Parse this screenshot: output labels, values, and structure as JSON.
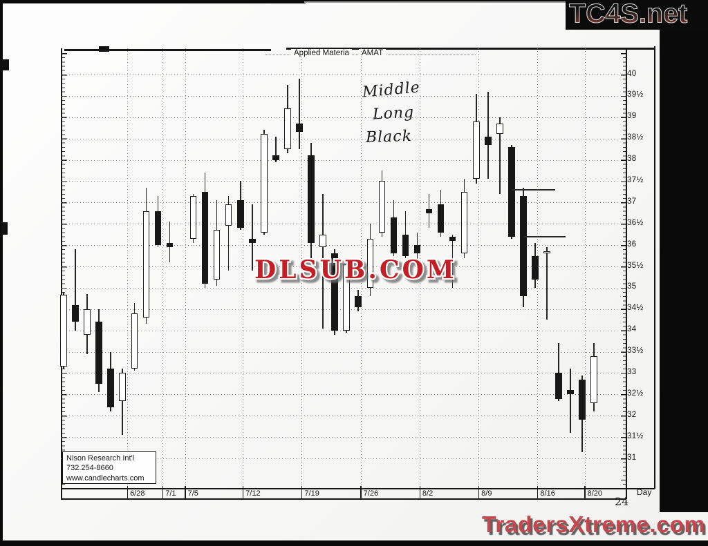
{
  "page": {
    "number": "24"
  },
  "watermarks": {
    "top_right": "TC4S.net",
    "center": "DLSUB.COM",
    "bottom_right": "TradersXtreme.com"
  },
  "annotations": {
    "handwritten_lines": [
      "Middle",
      "Long",
      "Black"
    ]
  },
  "infobox": {
    "line1": "Nison Research Int'l",
    "line2": "732.254-8660",
    "line3": "www.candlecharts.com"
  },
  "chart_data": {
    "type": "candlestick",
    "title": "Applied Materials - AMAT",
    "title_left": "Applied Materia",
    "title_right": "AMAT",
    "axis_unit_label": "Day",
    "grid": "dotted",
    "y_axis": {
      "max": 40,
      "min": 31,
      "step": 0.5,
      "tick_labels": [
        "40",
        "39½",
        "39",
        "38½",
        "38",
        "37½",
        "37",
        "36½",
        "36",
        "35½",
        "35",
        "34½",
        "34",
        "33½",
        "33",
        "32½",
        "32",
        "31½",
        "31"
      ]
    },
    "x_ticks": [
      {
        "label": "6/28",
        "slot": 5.4
      },
      {
        "label": "7/1",
        "slot": 8.4
      },
      {
        "label": "7/5",
        "slot": 10.3
      },
      {
        "label": "7/12",
        "slot": 15.2
      },
      {
        "label": "7/19",
        "slot": 20.2
      },
      {
        "label": "7/26",
        "slot": 25.2
      },
      {
        "label": "8/2",
        "slot": 30.2
      },
      {
        "label": "8/9",
        "slot": 35.2
      },
      {
        "label": "8/16",
        "slot": 40.2
      },
      {
        "label": "8/20",
        "slot": 44.2
      }
    ],
    "candle_format": [
      "slot",
      "open",
      "high",
      "low",
      "close",
      "color b=filled-black w=hollow-white"
    ],
    "candles": [
      [
        0,
        33.15,
        34.9,
        33.1,
        34.83,
        "w"
      ],
      [
        1,
        34.6,
        35.9,
        34.0,
        34.2,
        "b"
      ],
      [
        2,
        33.9,
        34.85,
        33.45,
        34.5,
        "w"
      ],
      [
        3,
        34.2,
        34.5,
        32.55,
        32.75,
        "b"
      ],
      [
        4,
        33.1,
        33.5,
        32.1,
        32.2,
        "b"
      ],
      [
        5,
        32.35,
        33.1,
        31.55,
        33.0,
        "w"
      ],
      [
        6,
        33.1,
        34.65,
        33.05,
        34.4,
        "w"
      ],
      [
        7,
        34.3,
        37.35,
        34.15,
        36.8,
        "w"
      ],
      [
        8,
        36.8,
        37.15,
        35.95,
        36.0,
        "b"
      ],
      [
        9,
        36.05,
        36.55,
        35.6,
        35.95,
        "b"
      ],
      [
        11,
        36.15,
        37.2,
        36.05,
        37.15,
        "w"
      ],
      [
        12,
        37.25,
        37.7,
        35.0,
        35.1,
        "b"
      ],
      [
        13,
        35.2,
        37.05,
        35.05,
        36.35,
        "w"
      ],
      [
        14,
        36.45,
        37.15,
        35.4,
        36.95,
        "w"
      ],
      [
        15,
        37.05,
        37.5,
        36.35,
        36.4,
        "b"
      ],
      [
        16,
        36.15,
        36.95,
        35.4,
        36.05,
        "b"
      ],
      [
        17,
        36.3,
        38.7,
        36.25,
        38.6,
        "w"
      ],
      [
        18,
        38.1,
        38.55,
        37.95,
        38.0,
        "b"
      ],
      [
        19,
        38.25,
        39.75,
        38.15,
        39.2,
        "w"
      ],
      [
        20,
        38.85,
        39.9,
        38.25,
        38.65,
        "b"
      ],
      [
        21,
        38.1,
        38.4,
        35.6,
        36.05,
        "b"
      ],
      [
        22,
        35.95,
        37.2,
        34.05,
        36.25,
        "w"
      ],
      [
        23,
        35.8,
        35.9,
        33.9,
        34.0,
        "b"
      ],
      [
        24,
        34.0,
        35.7,
        33.95,
        35.55,
        "w"
      ],
      [
        25,
        34.8,
        34.95,
        34.45,
        34.55,
        "b"
      ],
      [
        26,
        35.0,
        36.5,
        34.8,
        36.15,
        "w"
      ],
      [
        27,
        36.3,
        37.75,
        36.2,
        37.5,
        "w"
      ],
      [
        28,
        36.65,
        37.05,
        35.75,
        35.8,
        "b"
      ],
      [
        29,
        36.25,
        36.8,
        35.7,
        35.75,
        "b"
      ],
      [
        30,
        36.0,
        36.3,
        35.6,
        35.8,
        "b"
      ],
      [
        31,
        36.85,
        37.2,
        36.4,
        36.75,
        "b"
      ],
      [
        32,
        36.95,
        37.3,
        36.2,
        36.3,
        "b"
      ],
      [
        33,
        36.2,
        36.25,
        35.0,
        36.1,
        "b"
      ],
      [
        34,
        35.8,
        37.55,
        35.7,
        37.25,
        "w"
      ],
      [
        35,
        37.55,
        39.55,
        37.45,
        38.9,
        "w"
      ],
      [
        36,
        38.55,
        39.6,
        37.55,
        38.35,
        "b"
      ],
      [
        37,
        38.6,
        39.0,
        37.2,
        38.85,
        "w"
      ],
      [
        38,
        38.3,
        38.35,
        36.15,
        36.2,
        "b"
      ],
      [
        39,
        37.15,
        37.35,
        34.55,
        34.8,
        "b"
      ],
      [
        40,
        35.75,
        36.05,
        35.0,
        35.2,
        "b"
      ],
      [
        41,
        35.8,
        35.95,
        34.25,
        35.85,
        "w"
      ],
      [
        42,
        33.0,
        33.7,
        32.35,
        32.4,
        "b"
      ],
      [
        43,
        32.6,
        33.1,
        31.6,
        32.5,
        "b"
      ],
      [
        44,
        32.85,
        32.95,
        31.15,
        31.9,
        "b"
      ],
      [
        45,
        32.3,
        33.7,
        32.1,
        33.4,
        "w"
      ]
    ],
    "level_lines": [
      {
        "price": 37.3,
        "from_slot": 38.0,
        "to_slot": 41.7
      },
      {
        "price": 36.2,
        "from_slot": 39.0,
        "to_slot": 42.6
      }
    ]
  }
}
